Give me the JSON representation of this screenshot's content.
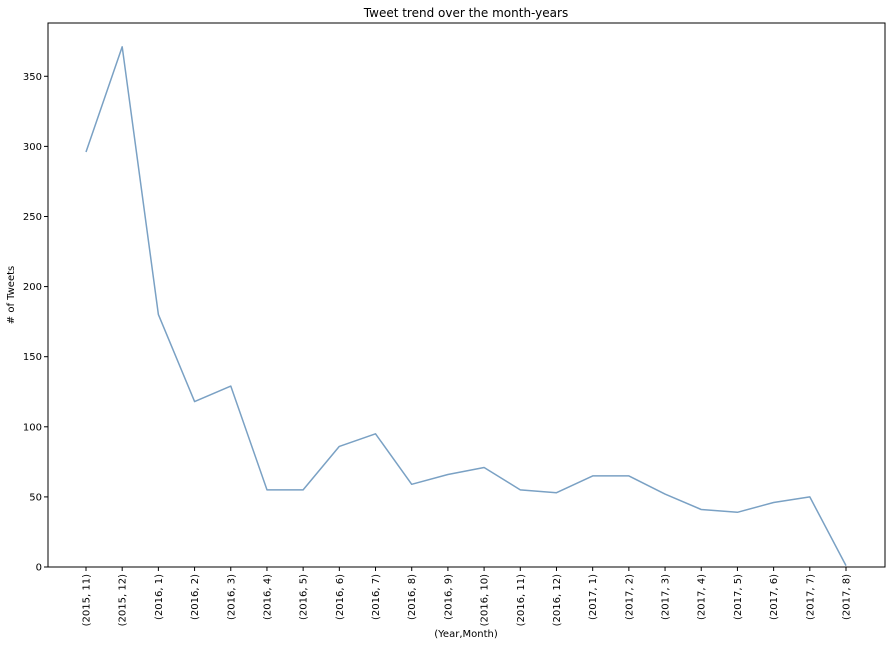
{
  "chart_data": {
    "type": "line",
    "title": "Tweet trend over the month-years",
    "xlabel": "(Year,Month)",
    "ylabel": "# of Tweets",
    "categories": [
      "(2015, 11)",
      "(2015, 12)",
      "(2016, 1)",
      "(2016, 2)",
      "(2016, 3)",
      "(2016, 4)",
      "(2016, 5)",
      "(2016, 6)",
      "(2016, 7)",
      "(2016, 8)",
      "(2016, 9)",
      "(2016, 10)",
      "(2016, 11)",
      "(2016, 12)",
      "(2017, 1)",
      "(2017, 2)",
      "(2017, 3)",
      "(2017, 4)",
      "(2017, 5)",
      "(2017, 6)",
      "(2017, 7)",
      "(2017, 8)"
    ],
    "values": [
      296,
      371,
      180,
      118,
      129,
      55,
      55,
      86,
      95,
      59,
      66,
      71,
      55,
      53,
      65,
      65,
      52,
      41,
      39,
      46,
      50,
      1
    ],
    "ylim": [
      0,
      388
    ],
    "yticks": [
      0,
      50,
      100,
      150,
      200,
      250,
      300,
      350
    ],
    "grid": false,
    "line_color": "#7aa1c4"
  }
}
